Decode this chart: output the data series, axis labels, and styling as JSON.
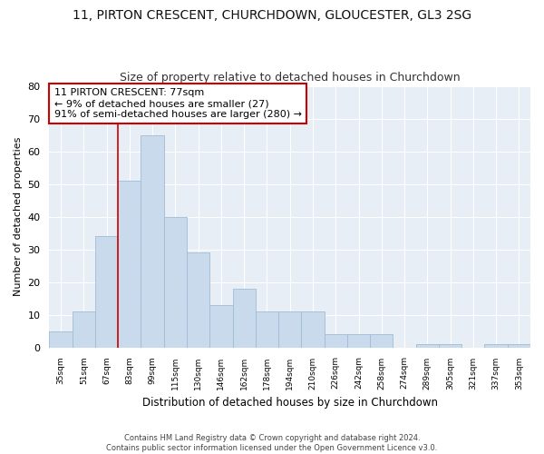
{
  "title_line1": "11, PIRTON CRESCENT, CHURCHDOWN, GLOUCESTER, GL3 2SG",
  "title_line2": "Size of property relative to detached houses in Churchdown",
  "xlabel": "Distribution of detached houses by size in Churchdown",
  "ylabel": "Number of detached properties",
  "bar_color": "#c8daec",
  "bar_edge_color": "#a0bcd4",
  "categories": [
    "35sqm",
    "51sqm",
    "67sqm",
    "83sqm",
    "99sqm",
    "115sqm",
    "130sqm",
    "146sqm",
    "162sqm",
    "178sqm",
    "194sqm",
    "210sqm",
    "226sqm",
    "242sqm",
    "258sqm",
    "274sqm",
    "289sqm",
    "305sqm",
    "321sqm",
    "337sqm",
    "353sqm"
  ],
  "values": [
    5,
    11,
    34,
    51,
    65,
    40,
    29,
    13,
    18,
    11,
    11,
    11,
    4,
    4,
    4,
    0,
    1,
    1,
    0,
    1,
    1
  ],
  "ylim": [
    0,
    80
  ],
  "yticks": [
    0,
    10,
    20,
    30,
    40,
    50,
    60,
    70,
    80
  ],
  "vline_color": "#cc0000",
  "vline_position": 2.5,
  "annotation_text": "11 PIRTON CRESCENT: 77sqm\n← 9% of detached houses are smaller (27)\n91% of semi-detached houses are larger (280) →",
  "annotation_box_color": "#ffffff",
  "annotation_box_edge": "#cc0000",
  "footnote_line1": "Contains HM Land Registry data © Crown copyright and database right 2024.",
  "footnote_line2": "Contains public sector information licensed under the Open Government Licence v3.0.",
  "figure_bg": "#ffffff",
  "axes_bg": "#e8eef6",
  "grid_color": "#ffffff"
}
